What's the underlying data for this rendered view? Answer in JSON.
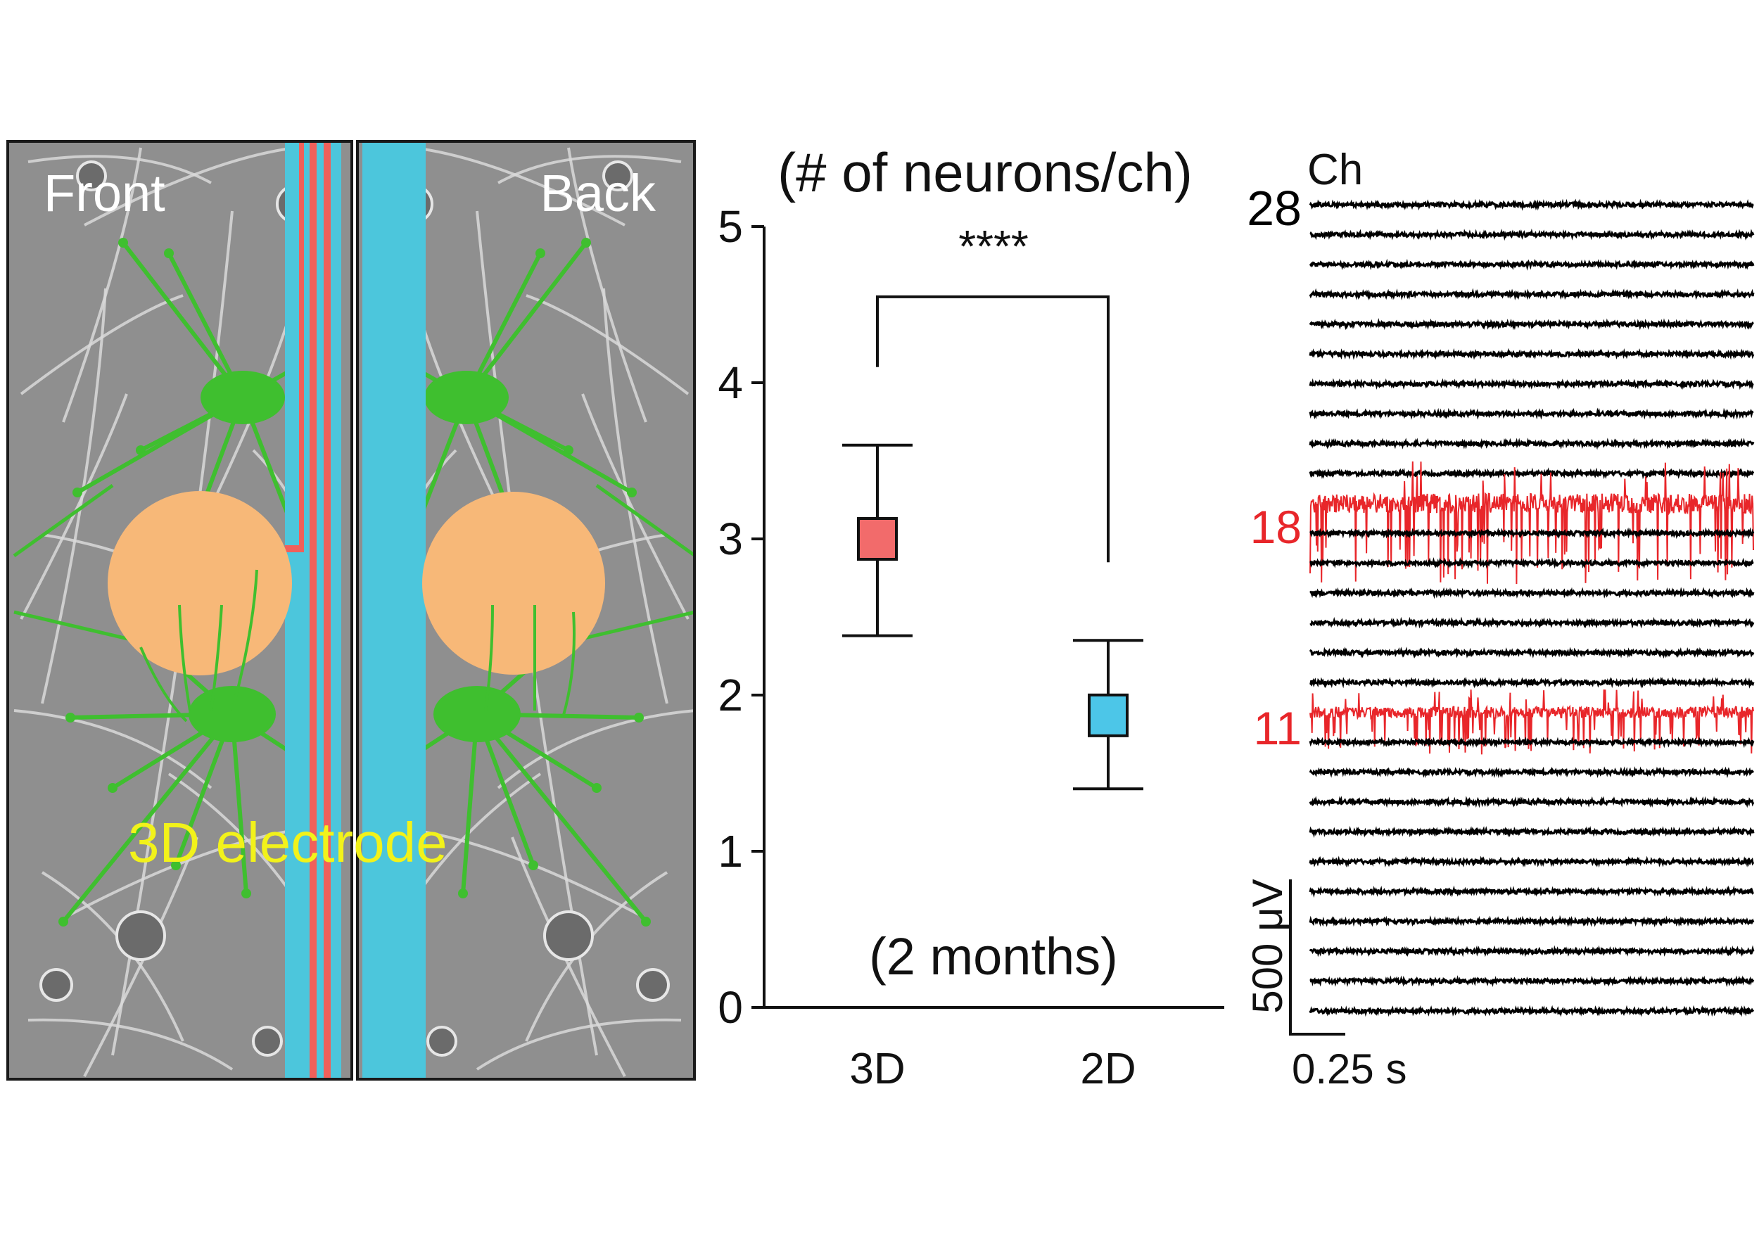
{
  "schematic": {
    "front_label": "Front",
    "back_label": "Back",
    "electrode_label": "3D electrode",
    "colors": {
      "background": "#8f8f8f",
      "neuron": "#3fbf2f",
      "electrode_pad": "#f7b878",
      "shank": "#4cc6dc",
      "trace_line": "#f0605a",
      "label_white": "#ffffff",
      "label_yellow": "#f2f21a"
    }
  },
  "chart_data": [
    {
      "type": "scatter",
      "title": "(# of neurons/ch)",
      "annotation": "(2 months)",
      "categories": [
        "3D",
        "2D"
      ],
      "ylim": [
        0,
        5
      ],
      "yticks": [
        0,
        1,
        2,
        3,
        4,
        5
      ],
      "series": [
        {
          "values": [
            3.0,
            1.87
          ],
          "err_low": [
            2.38,
            1.4
          ],
          "err_high": [
            3.6,
            2.35
          ],
          "colors": [
            "#f26b6b",
            "#4cc6e8"
          ]
        }
      ],
      "significance": {
        "between": [
          "3D",
          "2D"
        ],
        "label": "****",
        "left_start": 4.1,
        "right_start": 2.85,
        "bar_level": 4.55
      },
      "grid": false,
      "legend": "none"
    },
    {
      "type": "line",
      "header": "Ch",
      "channel_count": 28,
      "channel_labels": [
        {
          "channel": 28,
          "text": "28",
          "color": "#000000"
        },
        {
          "channel": 18,
          "text": "18",
          "color": "#e8262a"
        },
        {
          "channel": 11,
          "text": "11",
          "color": "#e8262a"
        }
      ],
      "active_channels": [
        18,
        11
      ],
      "trace_colors": {
        "default": "#000000",
        "active": "#e8262a"
      },
      "scale_bar": {
        "voltage": "500 μV",
        "time": "0.25 s"
      }
    }
  ]
}
